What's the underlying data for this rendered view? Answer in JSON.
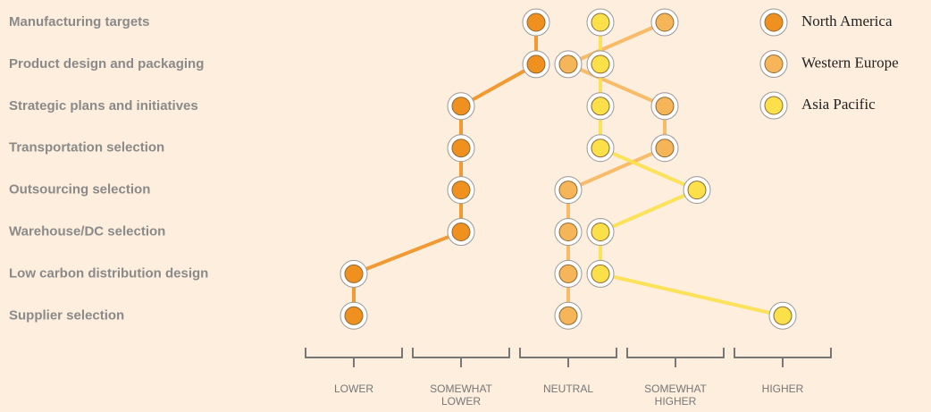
{
  "chart_data": {
    "type": "dotline",
    "categories": [
      "Manufacturing targets",
      "Product design and packaging",
      "Strategic plans and initiatives",
      "Transportation selection",
      "Outsourcing selection",
      "Warehouse/DC selection",
      "Low carbon distribution design",
      "Supplier selection"
    ],
    "series": [
      {
        "name": "North America",
        "color": "#f0901e",
        "values": [
          1.7,
          1.7,
          1.0,
          1.0,
          1.0,
          1.0,
          0,
          0
        ]
      },
      {
        "name": "Western Europe",
        "color": "#f7b55a",
        "values": [
          2.9,
          2.0,
          2.9,
          2.9,
          2.0,
          2.0,
          2.0,
          2.0
        ]
      },
      {
        "name": "Asia Pacific",
        "color": "#fbe04a",
        "values": [
          2.3,
          2.3,
          2.3,
          2.3,
          3.2,
          2.3,
          2.3,
          4.0
        ]
      }
    ],
    "xlim": [
      -0.5,
      4.5
    ],
    "xticks": [
      {
        "value": 0,
        "label": "LOWER"
      },
      {
        "value": 1,
        "label": "SOMEWHAT LOWER"
      },
      {
        "value": 2,
        "label": "NEUTRAL"
      },
      {
        "value": 3,
        "label": "SOMEWHAT HIGHER"
      },
      {
        "value": 4,
        "label": "HIGHER"
      }
    ],
    "legend": "upper right"
  }
}
